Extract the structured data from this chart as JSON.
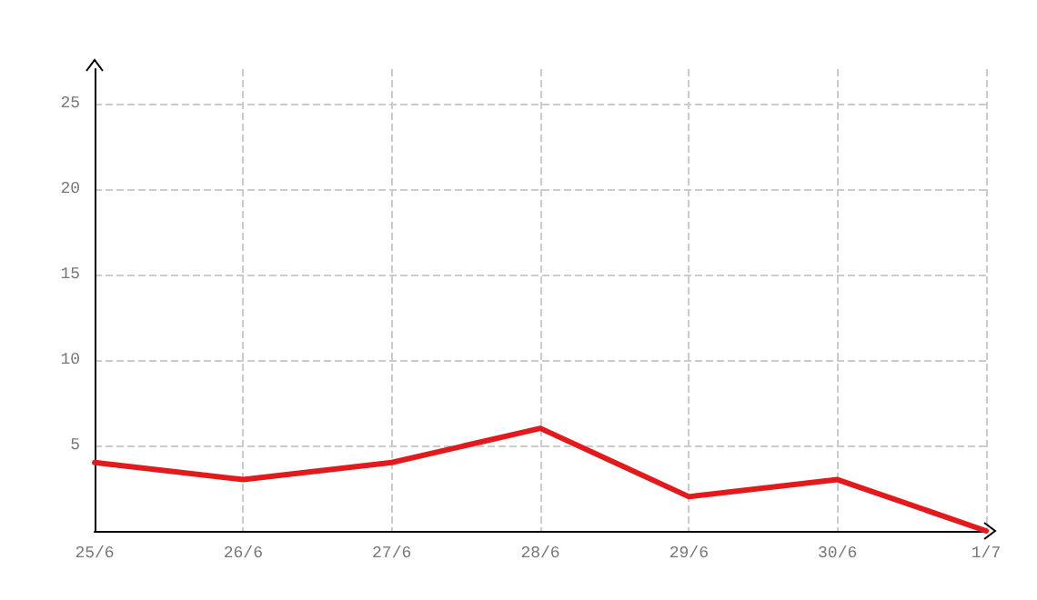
{
  "chart_data": {
    "type": "line",
    "categories": [
      "25/6",
      "26/6",
      "27/6",
      "28/6",
      "29/6",
      "30/6",
      "1/7"
    ],
    "series": [
      {
        "color": "#e31a1c",
        "values": [
          4,
          3,
          4,
          6,
          2,
          3,
          0
        ]
      }
    ],
    "ylim": [
      0,
      27
    ],
    "yticks": [
      {
        "value": 0,
        "label": null
      },
      5,
      10,
      15,
      20,
      25
    ],
    "grid": true,
    "marker": "none",
    "line_style": "solid"
  }
}
